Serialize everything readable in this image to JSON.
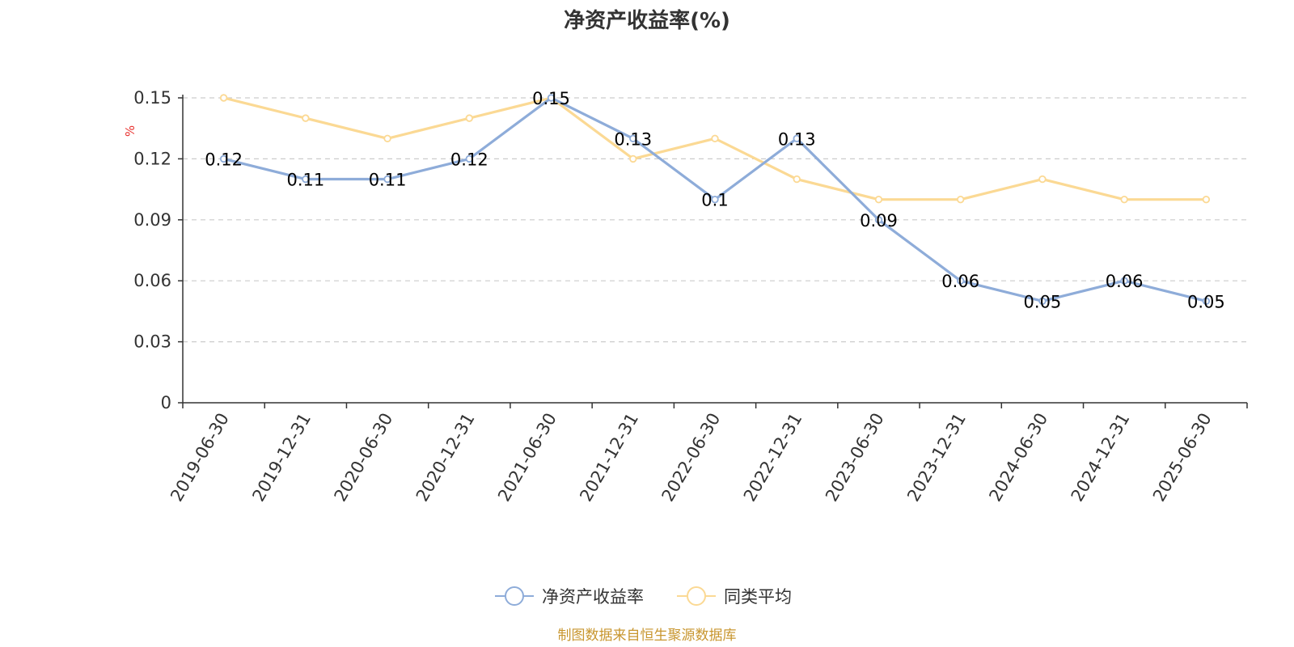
{
  "chart_data": {
    "type": "line",
    "title": "净资产收益率(%)",
    "ylabel": "%",
    "xlabel": "",
    "categories": [
      "2019-06-30",
      "2019-12-31",
      "2020-06-30",
      "2020-12-31",
      "2021-06-30",
      "2021-12-31",
      "2022-06-30",
      "2022-12-31",
      "2023-06-30",
      "2023-12-31",
      "2024-06-30",
      "2024-12-31",
      "2025-06-30"
    ],
    "ylim": [
      0,
      0.15
    ],
    "yticks": [
      0,
      0.03,
      0.06,
      0.09,
      0.12,
      0.15
    ],
    "ytick_labels": [
      "0",
      "0.03",
      "0.06",
      "0.09",
      "0.12",
      "0.15"
    ],
    "grid": true,
    "legend_position": "bottom-center",
    "series": [
      {
        "name": "净资产收益率",
        "color": "#8eacd9",
        "values": [
          0.12,
          0.11,
          0.11,
          0.12,
          0.15,
          0.13,
          0.1,
          0.13,
          0.09,
          0.06,
          0.05,
          0.06,
          0.05
        ],
        "labels": [
          "0.12",
          "0.11",
          "0.11",
          "0.12",
          "0.15",
          "0.13",
          "0.1",
          "0.13",
          "0.09",
          "0.06",
          "0.05",
          "0.06",
          "0.05"
        ]
      },
      {
        "name": "同类平均",
        "color": "#fbd994",
        "values": [
          0.15,
          0.14,
          0.13,
          0.14,
          0.15,
          0.12,
          0.13,
          0.11,
          0.1,
          0.1,
          0.11,
          0.1,
          0.1
        ]
      }
    ],
    "source": "制图数据来自恒生聚源数据库"
  }
}
